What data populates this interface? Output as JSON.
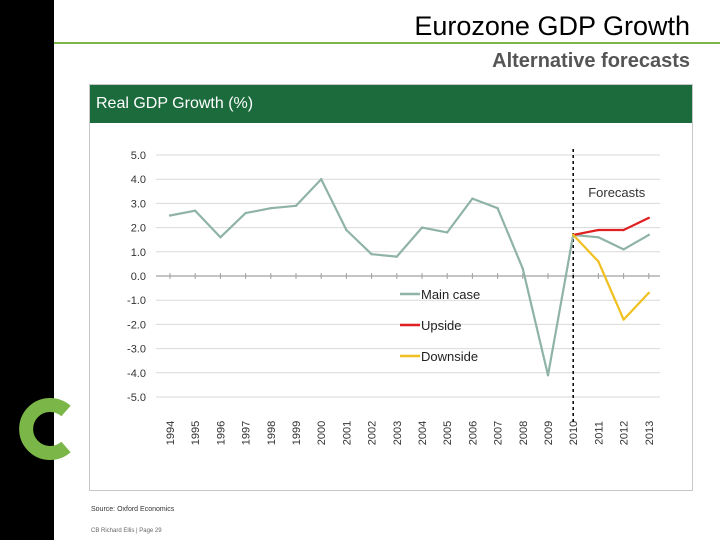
{
  "slide": {
    "title": "Eurozone  GDP Growth",
    "subtitle": "Alternative forecasts",
    "source": "Source: Oxford Economics",
    "footer": "CB Richard Ellis | Page 29",
    "accent_color": "#7ab648",
    "header_color": "#1b6b3c"
  },
  "chart_data": {
    "type": "line",
    "title": "Real GDP Growth (%)",
    "xlabel": "",
    "ylabel": "",
    "ylim": [
      -5.0,
      5.0
    ],
    "y_ticks": [
      "5.0",
      "4.0",
      "3.0",
      "2.0",
      "1.0",
      "0.0",
      "-1.0",
      "-2.0",
      "-3.0",
      "-4.0",
      "-5.0"
    ],
    "y_tick_values": [
      5,
      4,
      3,
      2,
      1,
      0,
      -1,
      -2,
      -3,
      -4,
      -5
    ],
    "categories": [
      "1994",
      "1995",
      "1996",
      "1997",
      "1998",
      "1999",
      "2000",
      "2001",
      "2002",
      "2003",
      "2004",
      "2005",
      "2006",
      "2007",
      "2008",
      "2009",
      "2010",
      "2011",
      "2012",
      "2013"
    ],
    "forecast_label": "Forecasts",
    "forecast_start": "2010",
    "grid": true,
    "legend_position": "center-bottom",
    "series": [
      {
        "name": "Main case",
        "color": "#8fb3a6",
        "x": [
          "1994",
          "1995",
          "1996",
          "1997",
          "1998",
          "1999",
          "2000",
          "2001",
          "2002",
          "2003",
          "2004",
          "2005",
          "2006",
          "2007",
          "2008",
          "2009",
          "2010",
          "2011",
          "2012",
          "2013"
        ],
        "values": [
          2.5,
          2.7,
          1.6,
          2.6,
          2.8,
          2.9,
          4.0,
          1.9,
          0.9,
          0.8,
          2.0,
          1.8,
          3.2,
          2.8,
          0.3,
          -4.1,
          1.7,
          1.6,
          1.1,
          1.7
        ]
      },
      {
        "name": "Upside",
        "color": "#e02020",
        "x": [
          "2010",
          "2011",
          "2012",
          "2013"
        ],
        "values": [
          1.7,
          1.9,
          1.9,
          2.4
        ]
      },
      {
        "name": "Downside",
        "color": "#f0c020",
        "x": [
          "2010",
          "2011",
          "2012",
          "2013"
        ],
        "values": [
          1.7,
          0.6,
          -1.8,
          -0.7
        ]
      }
    ]
  }
}
